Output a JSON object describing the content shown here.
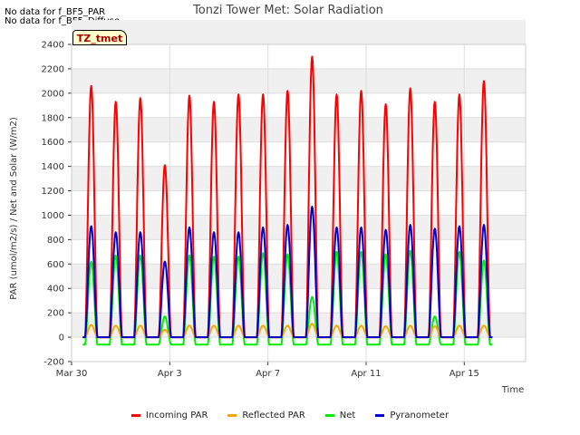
{
  "notes": [
    "No data for f_BF5_PAR",
    "No data for f_BF5_Diffuse"
  ],
  "tag_label": "TZ_tmet",
  "chart_data": {
    "type": "line",
    "title": "Tonzi Tower Met: Solar Radiation",
    "xlabel": "Time",
    "ylabel": "PAR (umol/m2/s) / Net and Solar (W/m2)",
    "ylim": [
      -200,
      2400
    ],
    "yticks": [
      -200,
      0,
      200,
      400,
      600,
      800,
      1000,
      1200,
      1400,
      1600,
      1800,
      2000,
      2200,
      2400
    ],
    "xlim_days": [
      0,
      18.5
    ],
    "xticks": [
      {
        "day": 0,
        "label": "Mar 30"
      },
      {
        "day": 4,
        "label": "Apr 3"
      },
      {
        "day": 8,
        "label": "Apr 7"
      },
      {
        "day": 12,
        "label": "Apr 11"
      },
      {
        "day": 16,
        "label": "Apr 15"
      }
    ],
    "grid": true,
    "legend_position": "bottom",
    "series": [
      {
        "name": "Incoming PAR",
        "color": "#ff0000",
        "daily_peak": [
          2060,
          1930,
          1960,
          1410,
          1980,
          1930,
          1990,
          1990,
          2020,
          2300,
          1990,
          2020,
          1910,
          2040,
          1930,
          1990,
          2100
        ],
        "night": 0
      },
      {
        "name": "Reflected PAR",
        "color": "#ffa500",
        "daily_peak": [
          100,
          95,
          95,
          60,
          95,
          95,
          95,
          95,
          95,
          110,
          95,
          95,
          90,
          95,
          90,
          95,
          95
        ],
        "night": 0
      },
      {
        "name": "Net",
        "color": "#00ee00",
        "daily_peak": [
          620,
          670,
          670,
          170,
          670,
          660,
          660,
          690,
          680,
          330,
          700,
          700,
          680,
          710,
          170,
          700,
          630
        ],
        "night": -60
      },
      {
        "name": "Pyranometer",
        "color": "#0000cc",
        "daily_peak": [
          910,
          860,
          860,
          620,
          900,
          860,
          860,
          900,
          920,
          1070,
          900,
          900,
          880,
          920,
          890,
          910,
          920
        ],
        "night": 0
      }
    ]
  }
}
